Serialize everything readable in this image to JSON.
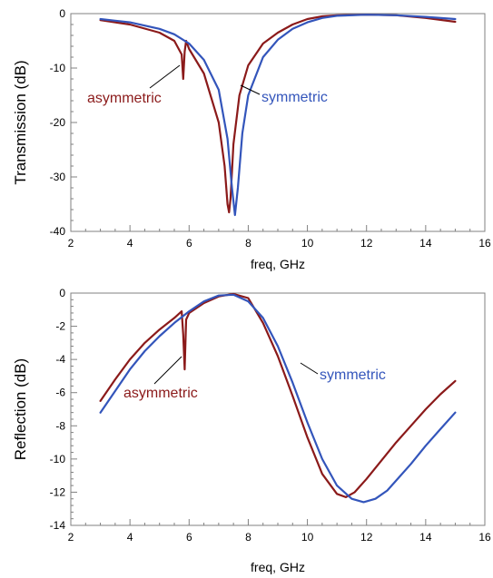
{
  "colors": {
    "asymmetric": "#8b1a1a",
    "symmetric": "#3355bb",
    "frame": "#808080",
    "grid": "#a0a0a0"
  },
  "chart_data": [
    {
      "type": "line",
      "xlabel": "freq, GHz",
      "ylabel": "Transmission (dB)",
      "xlim": [
        2,
        16
      ],
      "ylim": [
        -40,
        0
      ],
      "xticks": [
        2,
        4,
        6,
        8,
        10,
        12,
        14,
        16
      ],
      "yticks": [
        -40,
        -30,
        -20,
        -10,
        0
      ],
      "xtick_labels": [
        "2",
        "4",
        "6",
        "8",
        "10",
        "12",
        "14",
        "16"
      ],
      "ytick_labels": [
        "-40",
        "-30",
        "-20",
        "-10",
        "0"
      ],
      "grid": false,
      "series": [
        {
          "name": "asymmetric",
          "color": "#8b1a1a",
          "x": [
            3,
            4,
            5,
            5.5,
            5.75,
            5.8,
            5.85,
            5.9,
            6.0,
            6.5,
            7.0,
            7.2,
            7.3,
            7.35,
            7.4,
            7.5,
            7.7,
            8.0,
            8.5,
            9.0,
            9.5,
            10.0,
            10.5,
            11.0,
            12.0,
            13.0,
            14.0,
            15.0
          ],
          "y": [
            -1.2,
            -2.0,
            -3.5,
            -5.0,
            -7.5,
            -12.0,
            -7.0,
            -5.0,
            -6.5,
            -11.0,
            -20.0,
            -28.0,
            -35.0,
            -36.5,
            -34.0,
            -24.0,
            -15.0,
            -9.5,
            -5.5,
            -3.5,
            -2.0,
            -1.0,
            -0.5,
            -0.3,
            -0.2,
            -0.3,
            -0.8,
            -1.5
          ]
        },
        {
          "name": "symmetric",
          "color": "#3355bb",
          "x": [
            3,
            4,
            5,
            5.5,
            6.0,
            6.5,
            7.0,
            7.3,
            7.45,
            7.55,
            7.65,
            7.8,
            8.0,
            8.5,
            9.0,
            9.5,
            10.0,
            10.5,
            11.0,
            12.0,
            13.0,
            14.0,
            15.0
          ],
          "y": [
            -1.0,
            -1.6,
            -2.8,
            -3.8,
            -5.5,
            -8.5,
            -14.0,
            -23.0,
            -32.0,
            -37.0,
            -32.0,
            -22.0,
            -15.0,
            -8.0,
            -4.8,
            -2.8,
            -1.6,
            -0.8,
            -0.4,
            -0.2,
            -0.3,
            -0.6,
            -1.0
          ]
        }
      ],
      "annotations": [
        {
          "text": "asymmetric",
          "color": "#8b1a1a"
        },
        {
          "text": "symmetric",
          "color": "#3355bb"
        }
      ]
    },
    {
      "type": "line",
      "xlabel": "freq, GHz",
      "ylabel": "Reflection (dB)",
      "xlim": [
        2,
        16
      ],
      "ylim": [
        -14,
        0
      ],
      "xticks": [
        2,
        4,
        6,
        8,
        10,
        12,
        14,
        16
      ],
      "yticks": [
        -14,
        -12,
        -10,
        -8,
        -6,
        -4,
        -2,
        0
      ],
      "xtick_labels": [
        "2",
        "4",
        "6",
        "8",
        "10",
        "12",
        "14",
        "16"
      ],
      "ytick_labels": [
        "-14",
        "-12",
        "-10",
        "-8",
        "-6",
        "-4",
        "-2",
        "0"
      ],
      "grid": false,
      "series": [
        {
          "name": "asymmetric",
          "color": "#8b1a1a",
          "x": [
            3,
            3.5,
            4,
            4.5,
            5,
            5.5,
            5.75,
            5.8,
            5.85,
            5.9,
            6.0,
            6.5,
            7.0,
            7.5,
            8.0,
            8.5,
            9.0,
            9.5,
            10.0,
            10.5,
            11.0,
            11.3,
            11.6,
            12.0,
            12.5,
            13.0,
            13.5,
            14.0,
            14.5,
            15.0
          ],
          "y": [
            -6.5,
            -5.2,
            -4.0,
            -3.0,
            -2.2,
            -1.5,
            -1.1,
            -2.5,
            -4.6,
            -1.6,
            -1.2,
            -0.6,
            -0.2,
            -0.05,
            -0.3,
            -1.8,
            -3.8,
            -6.2,
            -8.7,
            -10.9,
            -12.1,
            -12.3,
            -12.0,
            -11.2,
            -10.1,
            -9.0,
            -8.0,
            -7.0,
            -6.1,
            -5.3
          ]
        },
        {
          "name": "symmetric",
          "color": "#3355bb",
          "x": [
            3,
            3.5,
            4,
            4.5,
            5,
            5.5,
            6.0,
            6.5,
            7.0,
            7.5,
            8.0,
            8.5,
            9.0,
            9.5,
            10.0,
            10.5,
            11.0,
            11.5,
            11.9,
            12.3,
            12.7,
            13.0,
            13.5,
            14.0,
            14.5,
            15.0
          ],
          "y": [
            -7.2,
            -5.9,
            -4.6,
            -3.5,
            -2.6,
            -1.8,
            -1.1,
            -0.5,
            -0.15,
            -0.1,
            -0.5,
            -1.5,
            -3.2,
            -5.4,
            -7.8,
            -10.0,
            -11.6,
            -12.4,
            -12.6,
            -12.4,
            -11.9,
            -11.3,
            -10.3,
            -9.2,
            -8.2,
            -7.2
          ]
        }
      ],
      "annotations": [
        {
          "text": "asymmetric",
          "color": "#8b1a1a"
        },
        {
          "text": "symmetric",
          "color": "#3355bb"
        }
      ]
    }
  ]
}
